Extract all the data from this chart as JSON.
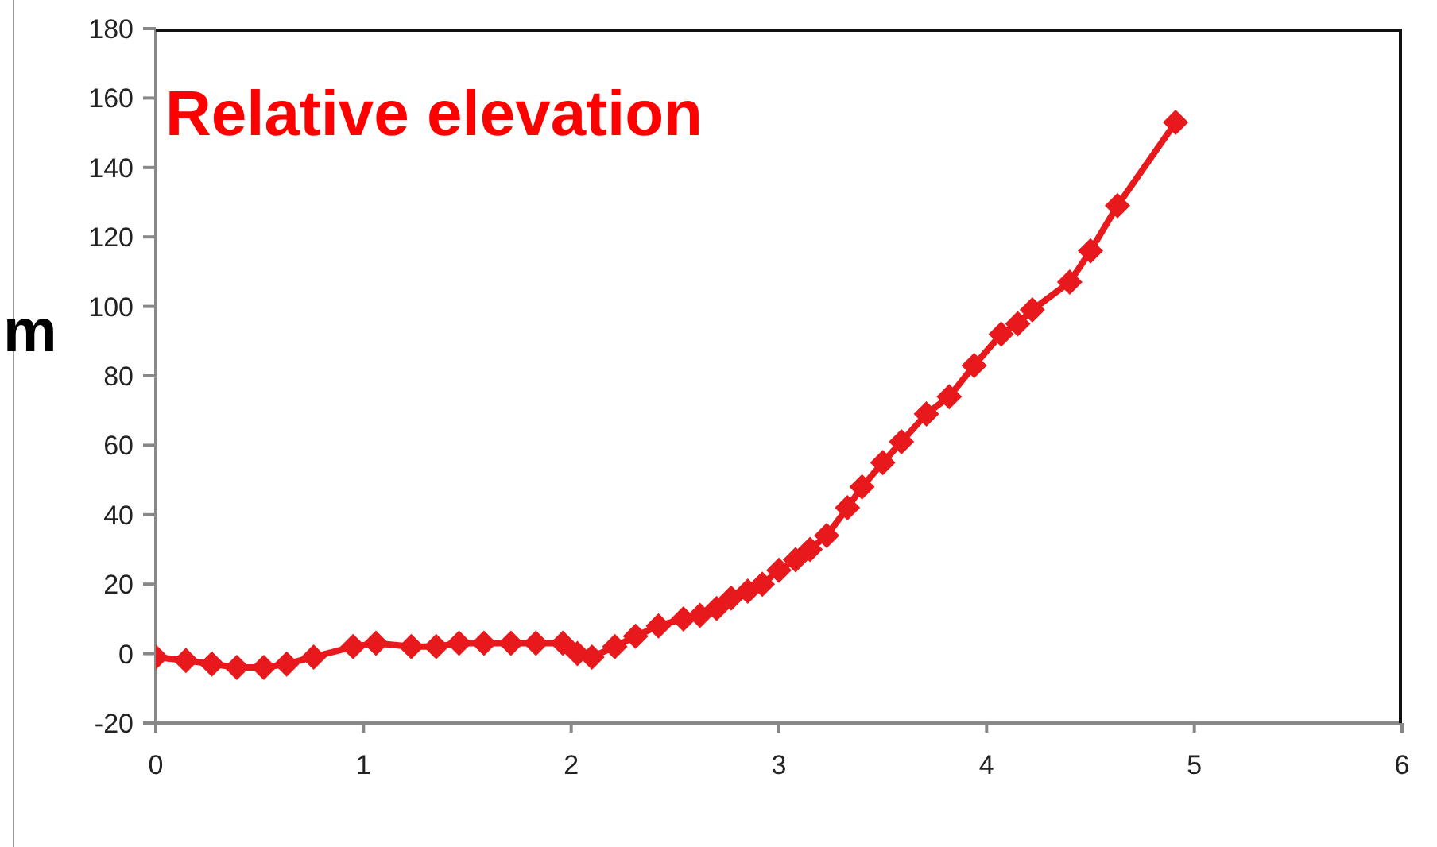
{
  "chart_data": {
    "type": "line",
    "title": "Relative elevation",
    "ylabel": "m",
    "x": [
      0,
      0.145,
      0.27,
      0.39,
      0.52,
      0.63,
      0.76,
      0.95,
      1.06,
      1.23,
      1.35,
      1.46,
      1.58,
      1.71,
      1.83,
      1.96,
      2.03,
      2.1,
      2.21,
      2.31,
      2.42,
      2.54,
      2.62,
      2.7,
      2.77,
      2.85,
      2.92,
      3.0,
      3.08,
      3.15,
      3.23,
      3.33,
      3.4,
      3.5,
      3.59,
      3.71,
      3.82,
      3.94,
      4.07,
      4.15,
      4.22,
      4.4,
      4.5,
      4.63,
      4.91
    ],
    "series": [
      {
        "color": "#e8191c",
        "values": [
          -1,
          -2,
          -3,
          -4,
          -4,
          -3,
          -1,
          2,
          3,
          2,
          2,
          3,
          3,
          3,
          3,
          3,
          0,
          -1,
          2,
          5,
          8,
          10,
          11,
          13,
          16,
          18,
          20,
          24,
          27,
          30,
          34,
          42,
          48,
          55,
          61,
          69,
          74,
          83,
          92,
          95,
          99,
          107,
          116,
          129,
          153
        ]
      }
    ],
    "xlim": [
      0,
      6
    ],
    "xticks": [
      0,
      1,
      2,
      3,
      4,
      5,
      6
    ],
    "ylim": [
      -20,
      180
    ],
    "yticks": [
      -20,
      0,
      20,
      40,
      60,
      80,
      100,
      120,
      140,
      160,
      180
    ],
    "grid": false,
    "marker": "diamond",
    "line_style": "solid"
  }
}
